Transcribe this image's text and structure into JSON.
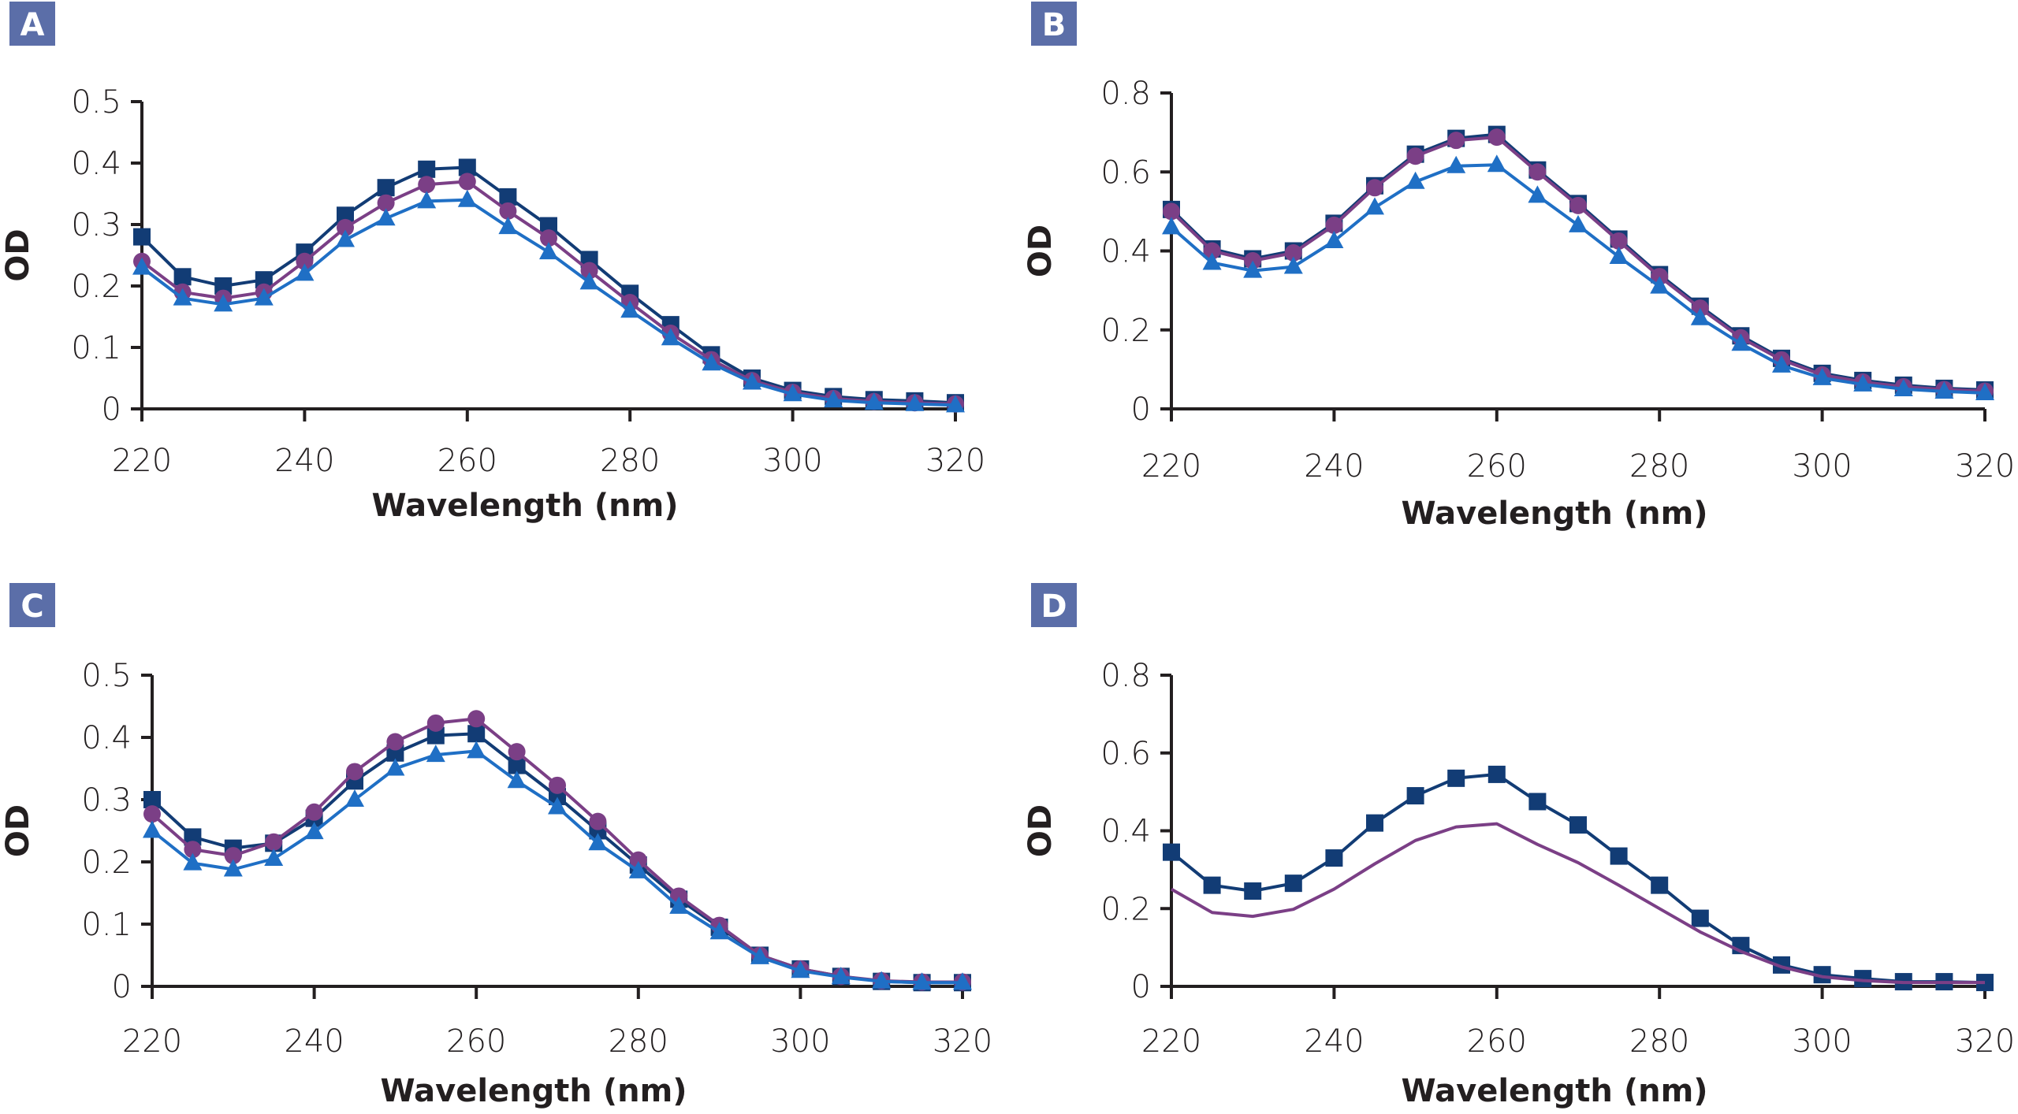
{
  "figure": {
    "badge_color": "#5b6ea8",
    "series_styles": {
      "square": {
        "color": "#123c75",
        "marker": "square"
      },
      "circle": {
        "color": "#7b3f86",
        "marker": "circle"
      },
      "triangle": {
        "color": "#1f6fc5",
        "marker": "triangle"
      },
      "line": {
        "color": "#7b3f86",
        "marker": "none"
      }
    }
  },
  "chart_data": [
    {
      "panel": "A",
      "type": "line",
      "xlabel": "Wavelength (nm)",
      "ylabel": "OD",
      "xlim": [
        220,
        320
      ],
      "ylim": [
        0,
        0.5
      ],
      "xticks": [
        "220",
        "240",
        "260",
        "280",
        "300",
        "320"
      ],
      "yticks": [
        "0",
        "0.1",
        "0.2",
        "0.3",
        "0.4",
        "0.5"
      ],
      "x": [
        220,
        225,
        230,
        235,
        240,
        245,
        250,
        255,
        260,
        265,
        270,
        275,
        280,
        285,
        290,
        295,
        300,
        305,
        310,
        315,
        320
      ],
      "series": [
        {
          "name": "square",
          "values": [
            0.28,
            0.215,
            0.2,
            0.21,
            0.255,
            0.315,
            0.36,
            0.39,
            0.393,
            0.345,
            0.298,
            0.243,
            0.188,
            0.137,
            0.088,
            0.05,
            0.03,
            0.02,
            0.015,
            0.013,
            0.01
          ]
        },
        {
          "name": "circle",
          "values": [
            0.24,
            0.19,
            0.18,
            0.19,
            0.24,
            0.295,
            0.335,
            0.365,
            0.37,
            0.322,
            0.278,
            0.225,
            0.173,
            0.123,
            0.08,
            0.046,
            0.027,
            0.017,
            0.012,
            0.01,
            0.008
          ]
        },
        {
          "name": "triangle",
          "values": [
            0.23,
            0.18,
            0.17,
            0.18,
            0.22,
            0.275,
            0.31,
            0.338,
            0.34,
            0.296,
            0.255,
            0.206,
            0.16,
            0.115,
            0.074,
            0.043,
            0.024,
            0.014,
            0.01,
            0.008,
            0.006
          ]
        }
      ]
    },
    {
      "panel": "B",
      "type": "line",
      "xlabel": "Wavelength (nm)",
      "ylabel": "OD",
      "xlim": [
        220,
        320
      ],
      "ylim": [
        0,
        0.8
      ],
      "xticks": [
        "220",
        "240",
        "260",
        "280",
        "300",
        "320"
      ],
      "yticks": [
        "0",
        "0.2",
        "0.4",
        "0.6",
        "0.8"
      ],
      "x": [
        220,
        225,
        230,
        235,
        240,
        245,
        250,
        255,
        260,
        265,
        270,
        275,
        280,
        285,
        290,
        295,
        300,
        305,
        310,
        315,
        320
      ],
      "series": [
        {
          "name": "square",
          "values": [
            0.505,
            0.405,
            0.38,
            0.4,
            0.47,
            0.565,
            0.645,
            0.685,
            0.695,
            0.605,
            0.52,
            0.43,
            0.34,
            0.26,
            0.185,
            0.128,
            0.09,
            0.072,
            0.06,
            0.052,
            0.048
          ]
        },
        {
          "name": "circle",
          "values": [
            0.5,
            0.4,
            0.375,
            0.395,
            0.465,
            0.56,
            0.64,
            0.68,
            0.688,
            0.6,
            0.515,
            0.425,
            0.335,
            0.255,
            0.18,
            0.124,
            0.086,
            0.068,
            0.056,
            0.049,
            0.045
          ]
        },
        {
          "name": "triangle",
          "values": [
            0.46,
            0.37,
            0.35,
            0.36,
            0.425,
            0.51,
            0.575,
            0.615,
            0.618,
            0.54,
            0.465,
            0.385,
            0.31,
            0.23,
            0.165,
            0.11,
            0.078,
            0.062,
            0.05,
            0.044,
            0.04
          ]
        }
      ]
    },
    {
      "panel": "C",
      "type": "line",
      "xlabel": "Wavelength (nm)",
      "ylabel": "OD",
      "xlim": [
        220,
        320
      ],
      "ylim": [
        0,
        0.5
      ],
      "xticks": [
        "220",
        "240",
        "260",
        "280",
        "300",
        "320"
      ],
      "yticks": [
        "0",
        "0.1",
        "0.2",
        "0.3",
        "0.4",
        "0.5"
      ],
      "x": [
        220,
        225,
        230,
        235,
        240,
        245,
        250,
        255,
        260,
        265,
        270,
        275,
        280,
        285,
        290,
        295,
        300,
        305,
        310,
        315,
        320
      ],
      "series": [
        {
          "name": "square",
          "values": [
            0.3,
            0.24,
            0.222,
            0.23,
            0.27,
            0.33,
            0.375,
            0.403,
            0.406,
            0.355,
            0.305,
            0.25,
            0.195,
            0.14,
            0.095,
            0.05,
            0.028,
            0.016,
            0.008,
            0.006,
            0.006
          ]
        },
        {
          "name": "circle",
          "values": [
            0.277,
            0.22,
            0.21,
            0.232,
            0.28,
            0.345,
            0.393,
            0.423,
            0.43,
            0.377,
            0.323,
            0.265,
            0.203,
            0.145,
            0.098,
            0.05,
            0.028,
            0.016,
            0.009,
            0.007,
            0.007
          ]
        },
        {
          "name": "triangle",
          "values": [
            0.25,
            0.198,
            0.188,
            0.205,
            0.248,
            0.3,
            0.35,
            0.372,
            0.378,
            0.33,
            0.288,
            0.23,
            0.185,
            0.128,
            0.087,
            0.047,
            0.025,
            0.015,
            0.008,
            0.006,
            0.006
          ]
        }
      ]
    },
    {
      "panel": "D",
      "type": "line",
      "xlabel": "Wavelength (nm)",
      "ylabel": "OD",
      "xlim": [
        220,
        320
      ],
      "ylim": [
        0,
        0.8
      ],
      "xticks": [
        "220",
        "240",
        "260",
        "280",
        "300",
        "320"
      ],
      "yticks": [
        "0",
        "0.2",
        "0.4",
        "0.6",
        "0.8"
      ],
      "x": [
        220,
        225,
        230,
        235,
        240,
        245,
        250,
        255,
        260,
        265,
        270,
        275,
        280,
        285,
        290,
        295,
        300,
        305,
        310,
        315,
        320
      ],
      "series": [
        {
          "name": "square",
          "values": [
            0.345,
            0.26,
            0.245,
            0.265,
            0.33,
            0.42,
            0.49,
            0.535,
            0.545,
            0.475,
            0.415,
            0.335,
            0.26,
            0.175,
            0.105,
            0.055,
            0.03,
            0.02,
            0.012,
            0.012,
            0.01
          ]
        },
        {
          "name": "line",
          "values": [
            0.25,
            0.19,
            0.18,
            0.198,
            0.25,
            0.315,
            0.375,
            0.41,
            0.418,
            0.365,
            0.318,
            0.26,
            0.2,
            0.14,
            0.09,
            0.05,
            0.025,
            0.015,
            0.01,
            0.01,
            0.01
          ]
        }
      ]
    }
  ]
}
